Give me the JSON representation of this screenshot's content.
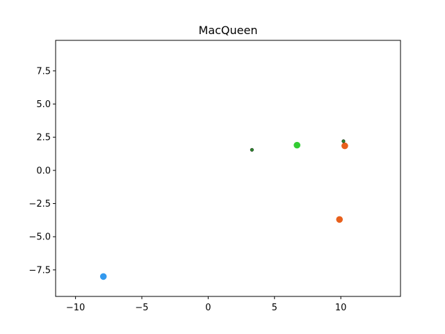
{
  "chart_data": {
    "type": "scatter",
    "title": "MacQueen",
    "xlabel": "",
    "ylabel": "",
    "xlim": [
      -11.5,
      14.5
    ],
    "ylim": [
      -9.5,
      9.8
    ],
    "grid": false,
    "x_ticks": [
      -10,
      -5,
      0,
      5,
      10
    ],
    "x_tick_labels": [
      "−10",
      "−5",
      "0",
      "5",
      "10"
    ],
    "y_ticks": [
      -7.5,
      -5.0,
      -2.5,
      0.0,
      2.5,
      5.0,
      7.5
    ],
    "y_tick_labels": [
      "−7.5",
      "−5.0",
      "−2.5",
      "0.0",
      "2.5",
      "5.0",
      "7.5"
    ],
    "series": [
      {
        "color": "#3399ee",
        "points": [
          {
            "x": -7.9,
            "y": -8.0,
            "size": "large"
          }
        ]
      },
      {
        "color": "#e8601c",
        "points": [
          {
            "x": 10.3,
            "y": 1.85,
            "size": "large"
          },
          {
            "x": 9.9,
            "y": -3.7,
            "size": "large"
          }
        ]
      },
      {
        "color": "#33cc33",
        "points": [
          {
            "x": 6.7,
            "y": 1.9,
            "size": "large"
          }
        ]
      },
      {
        "color": "#2e8b2e",
        "points": [
          {
            "x": 3.3,
            "y": 1.55,
            "size": "small"
          },
          {
            "x": 10.2,
            "y": 2.2,
            "size": "small"
          }
        ]
      }
    ]
  }
}
